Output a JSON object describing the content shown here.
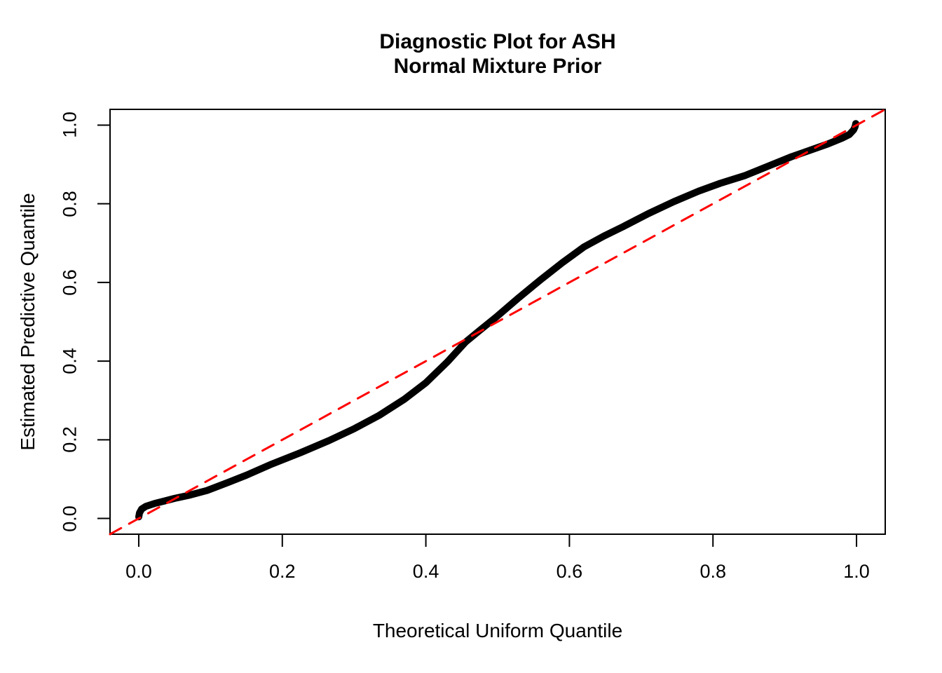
{
  "title": {
    "line1": "Diagnostic Plot for ASH",
    "line2": "Normal Mixture Prior"
  },
  "colors": {
    "background": "#FFFFFF",
    "frame": "#000000",
    "curve": "#000000",
    "reference_line": "#FF0000",
    "text": "#000000"
  },
  "chart_data": {
    "type": "line",
    "title": "Diagnostic Plot for ASH / Normal Mixture Prior",
    "xlabel": "Theoretical Uniform Quantile",
    "ylabel": "Estimated Predictive Quantile",
    "xlim": [
      -0.04,
      1.04
    ],
    "ylim": [
      -0.04,
      1.04
    ],
    "grid": false,
    "legend": "none",
    "x_ticks": [
      "0.0",
      "0.2",
      "0.4",
      "0.6",
      "0.8",
      "1.0"
    ],
    "y_ticks": [
      "0.0",
      "0.2",
      "0.4",
      "0.6",
      "0.8",
      "1.0"
    ],
    "x_tick_values": [
      0.0,
      0.2,
      0.4,
      0.6,
      0.8,
      1.0
    ],
    "y_tick_values": [
      0.0,
      0.2,
      0.4,
      0.6,
      0.8,
      1.0
    ],
    "series": [
      {
        "name": "estimated-vs-theoretical-quantile-curve",
        "color": "#000000",
        "style": "solid",
        "stroke_width": 10,
        "points": [
          [
            0.0,
            0.004
          ],
          [
            0.001,
            0.014
          ],
          [
            0.004,
            0.024
          ],
          [
            0.01,
            0.031
          ],
          [
            0.022,
            0.038
          ],
          [
            0.035,
            0.044
          ],
          [
            0.05,
            0.051
          ],
          [
            0.07,
            0.059
          ],
          [
            0.095,
            0.071
          ],
          [
            0.125,
            0.092
          ],
          [
            0.15,
            0.11
          ],
          [
            0.185,
            0.138
          ],
          [
            0.225,
            0.167
          ],
          [
            0.265,
            0.198
          ],
          [
            0.3,
            0.228
          ],
          [
            0.335,
            0.262
          ],
          [
            0.37,
            0.303
          ],
          [
            0.4,
            0.345
          ],
          [
            0.43,
            0.398
          ],
          [
            0.455,
            0.448
          ],
          [
            0.475,
            0.478
          ],
          [
            0.5,
            0.515
          ],
          [
            0.53,
            0.562
          ],
          [
            0.56,
            0.607
          ],
          [
            0.59,
            0.65
          ],
          [
            0.62,
            0.69
          ],
          [
            0.648,
            0.718
          ],
          [
            0.675,
            0.742
          ],
          [
            0.71,
            0.775
          ],
          [
            0.745,
            0.805
          ],
          [
            0.78,
            0.832
          ],
          [
            0.81,
            0.852
          ],
          [
            0.845,
            0.872
          ],
          [
            0.88,
            0.898
          ],
          [
            0.91,
            0.92
          ],
          [
            0.935,
            0.936
          ],
          [
            0.96,
            0.952
          ],
          [
            0.98,
            0.967
          ],
          [
            0.99,
            0.976
          ],
          [
            0.996,
            0.988
          ],
          [
            0.998,
            0.996
          ],
          [
            0.999,
            1.004
          ]
        ]
      },
      {
        "name": "identity-reference-line",
        "color": "#FF0000",
        "style": "dashed",
        "stroke_width": 3,
        "points": [
          [
            -0.04,
            -0.04
          ],
          [
            1.04,
            1.04
          ]
        ]
      }
    ]
  }
}
